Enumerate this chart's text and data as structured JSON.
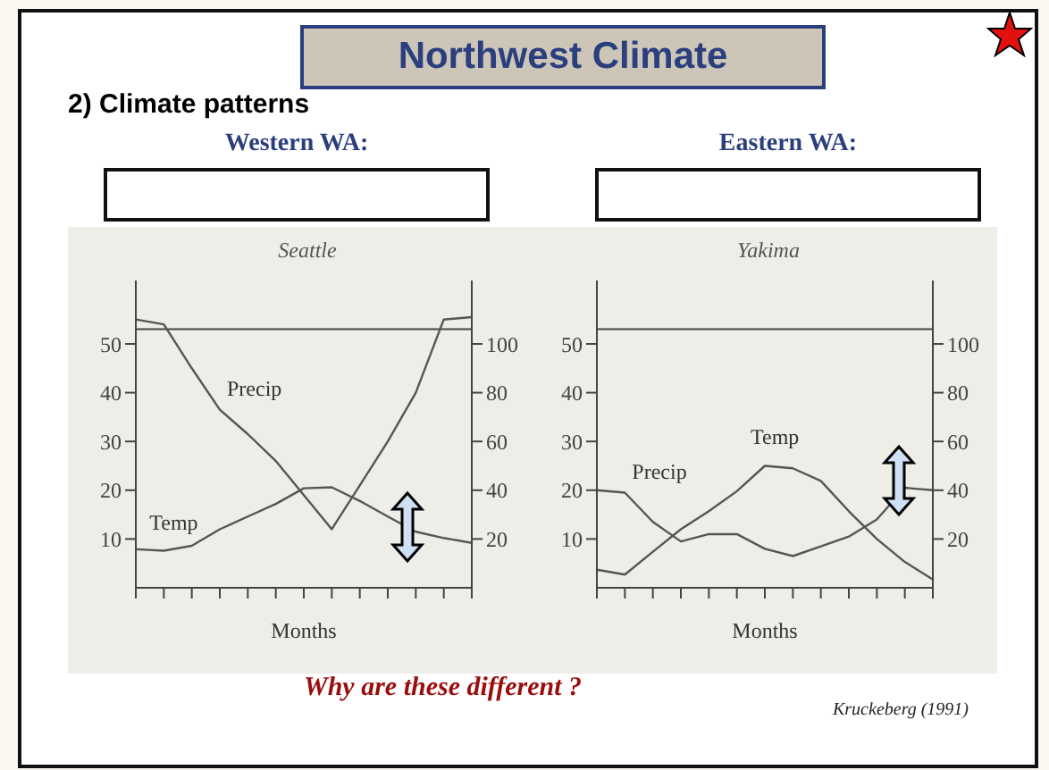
{
  "chart_data": [
    {
      "type": "line",
      "title": "Seattle",
      "xlabel": "Months",
      "annotations": [
        "Northwest Climate",
        "2) Climate patterns",
        "Western WA:"
      ],
      "categories": [
        null,
        null,
        null,
        null,
        null,
        null,
        null,
        null,
        null,
        null,
        null,
        null,
        null
      ],
      "series": [
        {
          "name": "Temp",
          "color": "#555555",
          "values": [
            7.9,
            7.6,
            8.6,
            12,
            14.6,
            17.2,
            20.4,
            20.6,
            17.8,
            14.6,
            11.5,
            10.2,
            9.2
          ]
        },
        {
          "name": "Precip",
          "color": "#555555",
          "axis": "y2",
          "values": [
            110,
            108,
            90,
            73,
            63,
            52,
            38,
            24,
            42,
            60,
            80,
            110,
            111
          ]
        }
      ],
      "ylim": [
        0,
        63
      ],
      "yticks": [
        10,
        20,
        30,
        40,
        50
      ],
      "y2lim": [
        0,
        126
      ],
      "y2ticks": [
        20,
        40,
        60,
        80,
        100
      ],
      "ref_lines": [
        {
          "axis": "y2",
          "value": 106
        }
      ],
      "tick_labels": "y",
      "grid": false,
      "legend": false,
      "marker": "none",
      "line_style": "solid"
    },
    {
      "type": "line",
      "title": "Yakima",
      "xlabel": "Months",
      "annotations": [
        "Eastern WA:",
        "Why are these different ?",
        "Kruckeberg (1991)"
      ],
      "categories": [
        null,
        null,
        null,
        null,
        null,
        null,
        null,
        null,
        null,
        null,
        null,
        null,
        null
      ],
      "series": [
        {
          "name": "Temp",
          "color": "#555555",
          "values": [
            3.7,
            2.7,
            7.4,
            12,
            15.7,
            19.8,
            25,
            24.5,
            21.9,
            15.7,
            10,
            5.3,
            1.7
          ]
        },
        {
          "name": "Precip",
          "color": "#555555",
          "axis": "y2",
          "values": [
            40,
            39,
            27,
            19,
            22,
            22,
            16,
            13,
            17,
            21,
            28,
            41,
            40
          ]
        }
      ],
      "ylim": [
        0,
        63
      ],
      "yticks": [
        10,
        20,
        30,
        40,
        50
      ],
      "y2lim": [
        0,
        126
      ],
      "y2ticks": [
        20,
        40,
        60,
        80,
        100
      ],
      "ref_lines": [
        {
          "axis": "y2",
          "value": 106
        }
      ],
      "tick_labels": "y",
      "grid": false,
      "legend": false,
      "marker": "none",
      "line_style": "solid"
    }
  ]
}
